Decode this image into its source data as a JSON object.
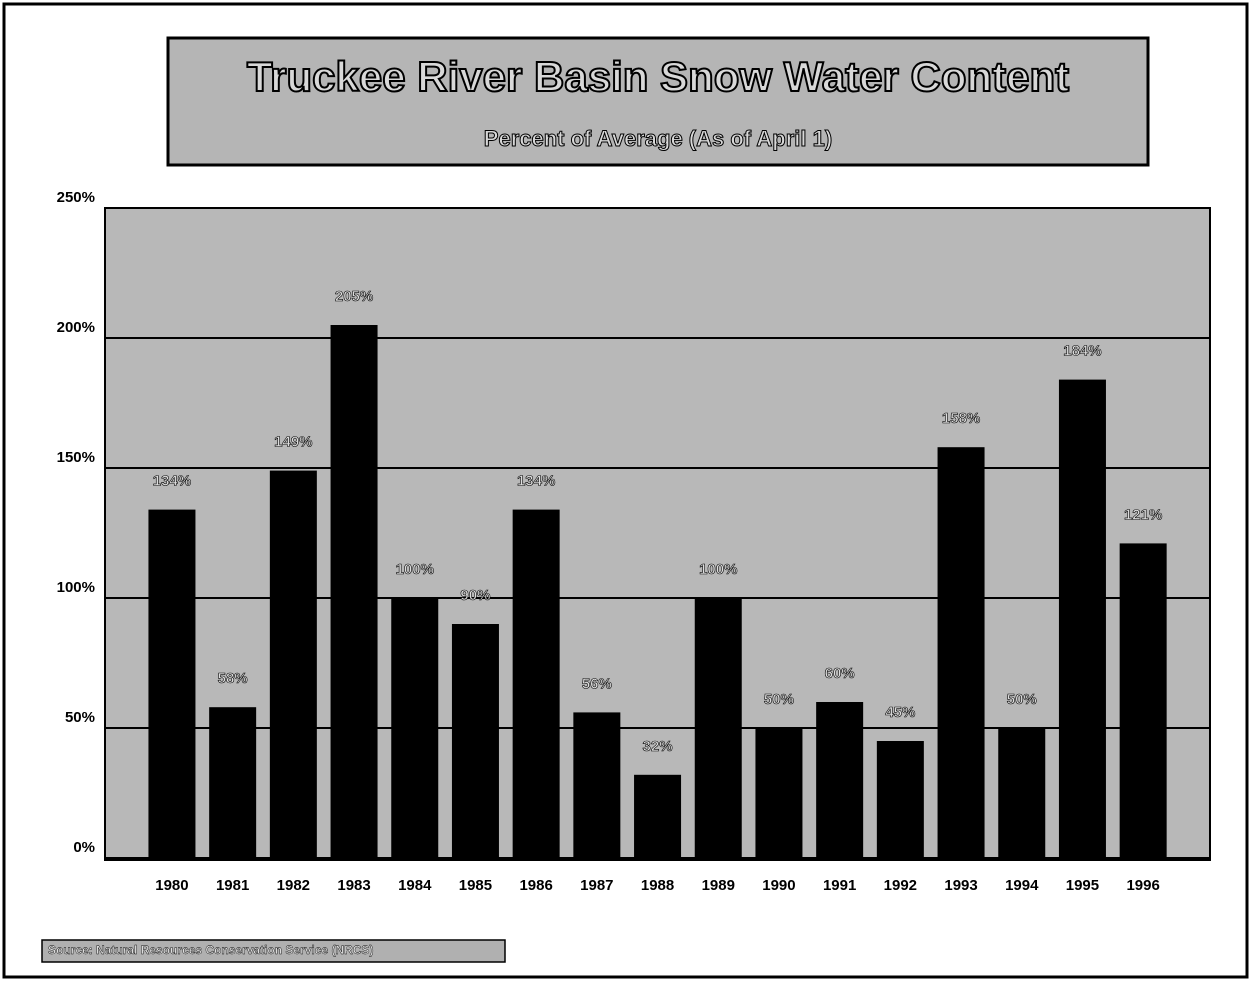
{
  "chart_data": {
    "type": "bar",
    "title": "Truckee River Basin Snow Water Content",
    "subtitle": "Percent of Average (As of April 1)",
    "source": "Source: Natural Resources Conservation Service (NRCS)",
    "categories": [
      "1980",
      "1981",
      "1982",
      "1983",
      "1984",
      "1985",
      "1986",
      "1987",
      "1988",
      "1989",
      "1990",
      "1991",
      "1992",
      "1993",
      "1994",
      "1995",
      "1996"
    ],
    "values": [
      134,
      58,
      149,
      205,
      100,
      90,
      134,
      56,
      32,
      100,
      50,
      60,
      45,
      158,
      50,
      184,
      121
    ],
    "value_labels": [
      "134%",
      "58%",
      "149%",
      "205%",
      "100%",
      "90%",
      "134%",
      "56%",
      "32%",
      "100%",
      "50%",
      "60%",
      "45%",
      "158%",
      "50%",
      "184%",
      "121%"
    ],
    "color": "#000000",
    "ylim": [
      0,
      250
    ],
    "yticks": [
      {
        "value": 0,
        "label": "0%"
      },
      {
        "value": 50,
        "label": "50%"
      },
      {
        "value": 100,
        "label": "100%"
      },
      {
        "value": 150,
        "label": "150%"
      },
      {
        "value": 200,
        "label": "200%"
      },
      {
        "value": 250,
        "label": "250%"
      }
    ],
    "grid": true
  }
}
